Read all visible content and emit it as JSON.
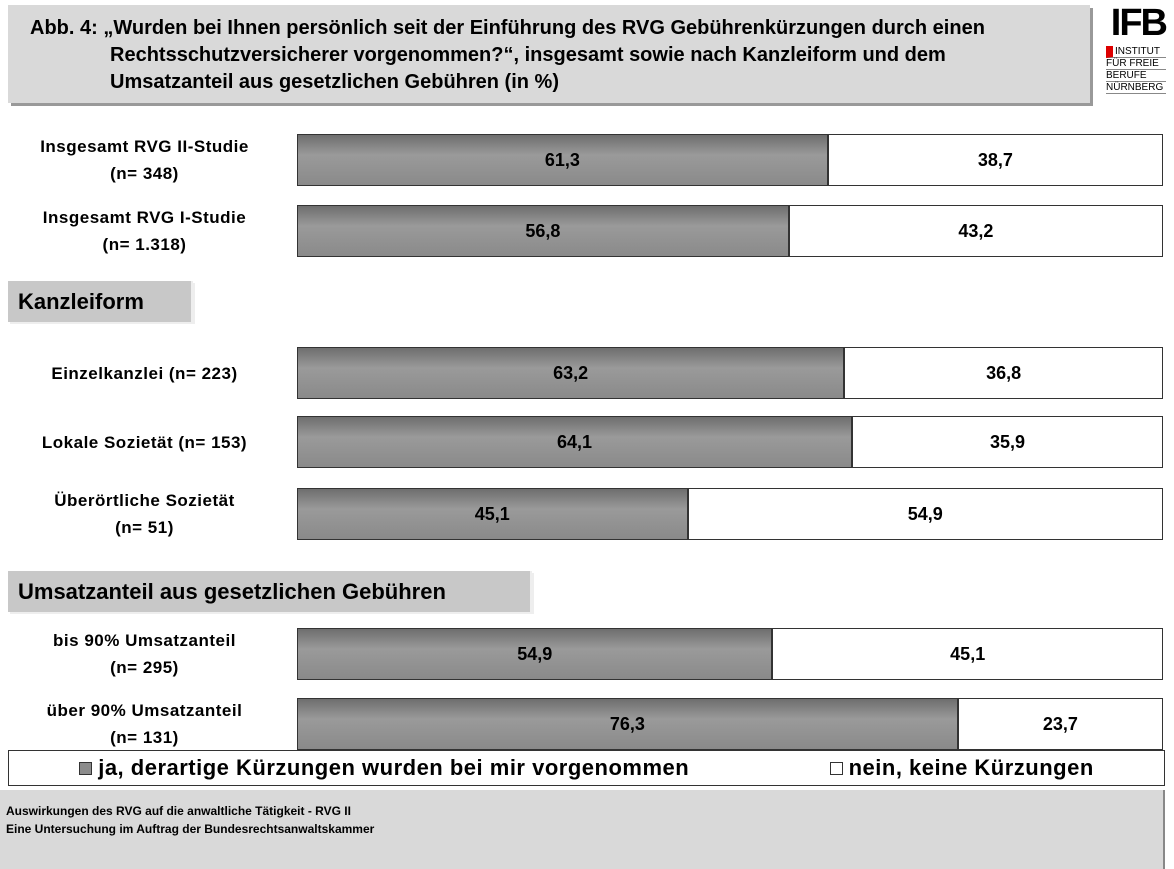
{
  "chart_data": {
    "type": "bar",
    "orientation": "horizontal",
    "stacked": true,
    "title": "Abb. 4: „Wurden bei Ihnen persönlich seit der Einführung des RVG Gebührenkürzungen durch einen Rechtsschutzversicherer vorgenommen?“, insgesamt sowie nach Kanzleiform und dem Umsatzanteil aus gesetzlichen Gebühren (in %)",
    "sections": [
      "Kanzleiform",
      "Umsatzanteil aus gesetzlichen Gebühren"
    ],
    "categories": [
      "Insgesamt RVG II-Studie\n(n= 348)",
      "Insgesamt RVG I-Studie\n(n= 1.318)",
      "Einzelkanzlei (n= 223)",
      "Lokale Sozietät (n= 153)",
      "Überörtliche Sozietät\n(n= 51)",
      "bis 90% Umsatzanteil\n(n= 295)",
      "über 90% Umsatzanteil\n(n= 131)"
    ],
    "xlim": [
      0,
      100
    ],
    "series": [
      {
        "name": "ja, derartige Kürzungen wurden bei mir vorgenommen",
        "color": "#8c8c8c",
        "values": [
          61.3,
          56.8,
          63.2,
          64.1,
          45.1,
          54.9,
          76.3
        ],
        "value_labels": [
          "61,3",
          "56,8",
          "63,2",
          "64,1",
          "45,1",
          "54,9",
          "76,3"
        ]
      },
      {
        "name": "nein, keine Kürzungen",
        "color": "#ffffff",
        "values": [
          38.7,
          43.2,
          36.8,
          35.9,
          54.9,
          45.1,
          23.7
        ],
        "value_labels": [
          "38,7",
          "43,2",
          "36,8",
          "35,9",
          "54,9",
          "45,1",
          "23,7"
        ]
      }
    ]
  },
  "logo": {
    "name": "IFB",
    "lines": [
      "INSTITUT",
      "FÜR FREIE",
      "BERUFE",
      "NÜRNBERG"
    ]
  },
  "footer": [
    "Auswirkungen des RVG auf die anwaltliche Tätigkeit - RVG II",
    "Eine Untersuchung im Auftrag der Bundesrechtsanwaltskammer"
  ]
}
